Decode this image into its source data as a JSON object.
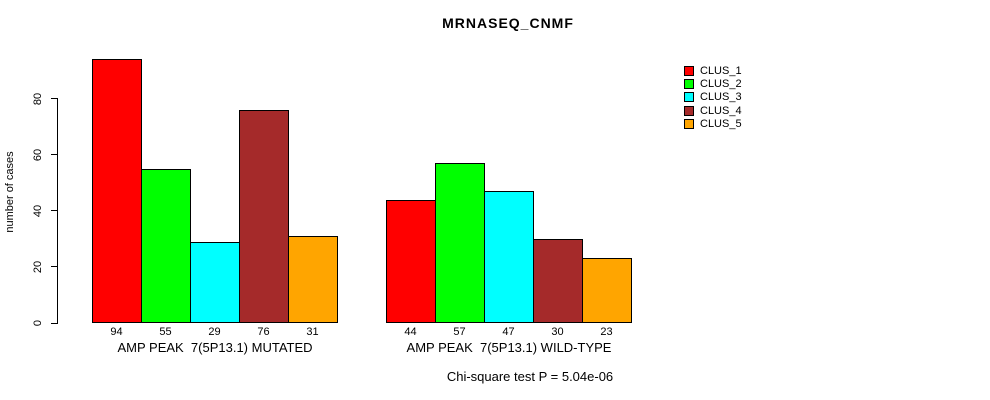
{
  "title": "MRNASEQ_CNMF",
  "chart_data": {
    "type": "bar",
    "title": "MRNASEQ_CNMF",
    "xlabel": "",
    "ylabel": "number of cases",
    "ylim": [
      0,
      80
    ],
    "yticks": [
      0,
      20,
      40,
      60,
      80
    ],
    "grid": false,
    "legend_position": "top-right",
    "series": [
      "CLUS_1",
      "CLUS_2",
      "CLUS_3",
      "CLUS_4",
      "CLUS_5"
    ],
    "series_colors": {
      "CLUS_1": "#FF0000",
      "CLUS_2": "#00FF00",
      "CLUS_3": "#00FFFF",
      "CLUS_4": "#A52A2A",
      "CLUS_5": "#FFA500"
    },
    "groups": [
      {
        "label": "AMP PEAK  7(5P13.1) MUTATED",
        "values": [
          94,
          55,
          29,
          76,
          31
        ]
      },
      {
        "label": "AMP PEAK  7(5P13.1) WILD-TYPE",
        "values": [
          44,
          57,
          47,
          30,
          23
        ]
      }
    ],
    "annotation": "Chi-square test P = 5.04e-06",
    "axis_color": "#000000",
    "background_color": "#FFFFFF"
  }
}
